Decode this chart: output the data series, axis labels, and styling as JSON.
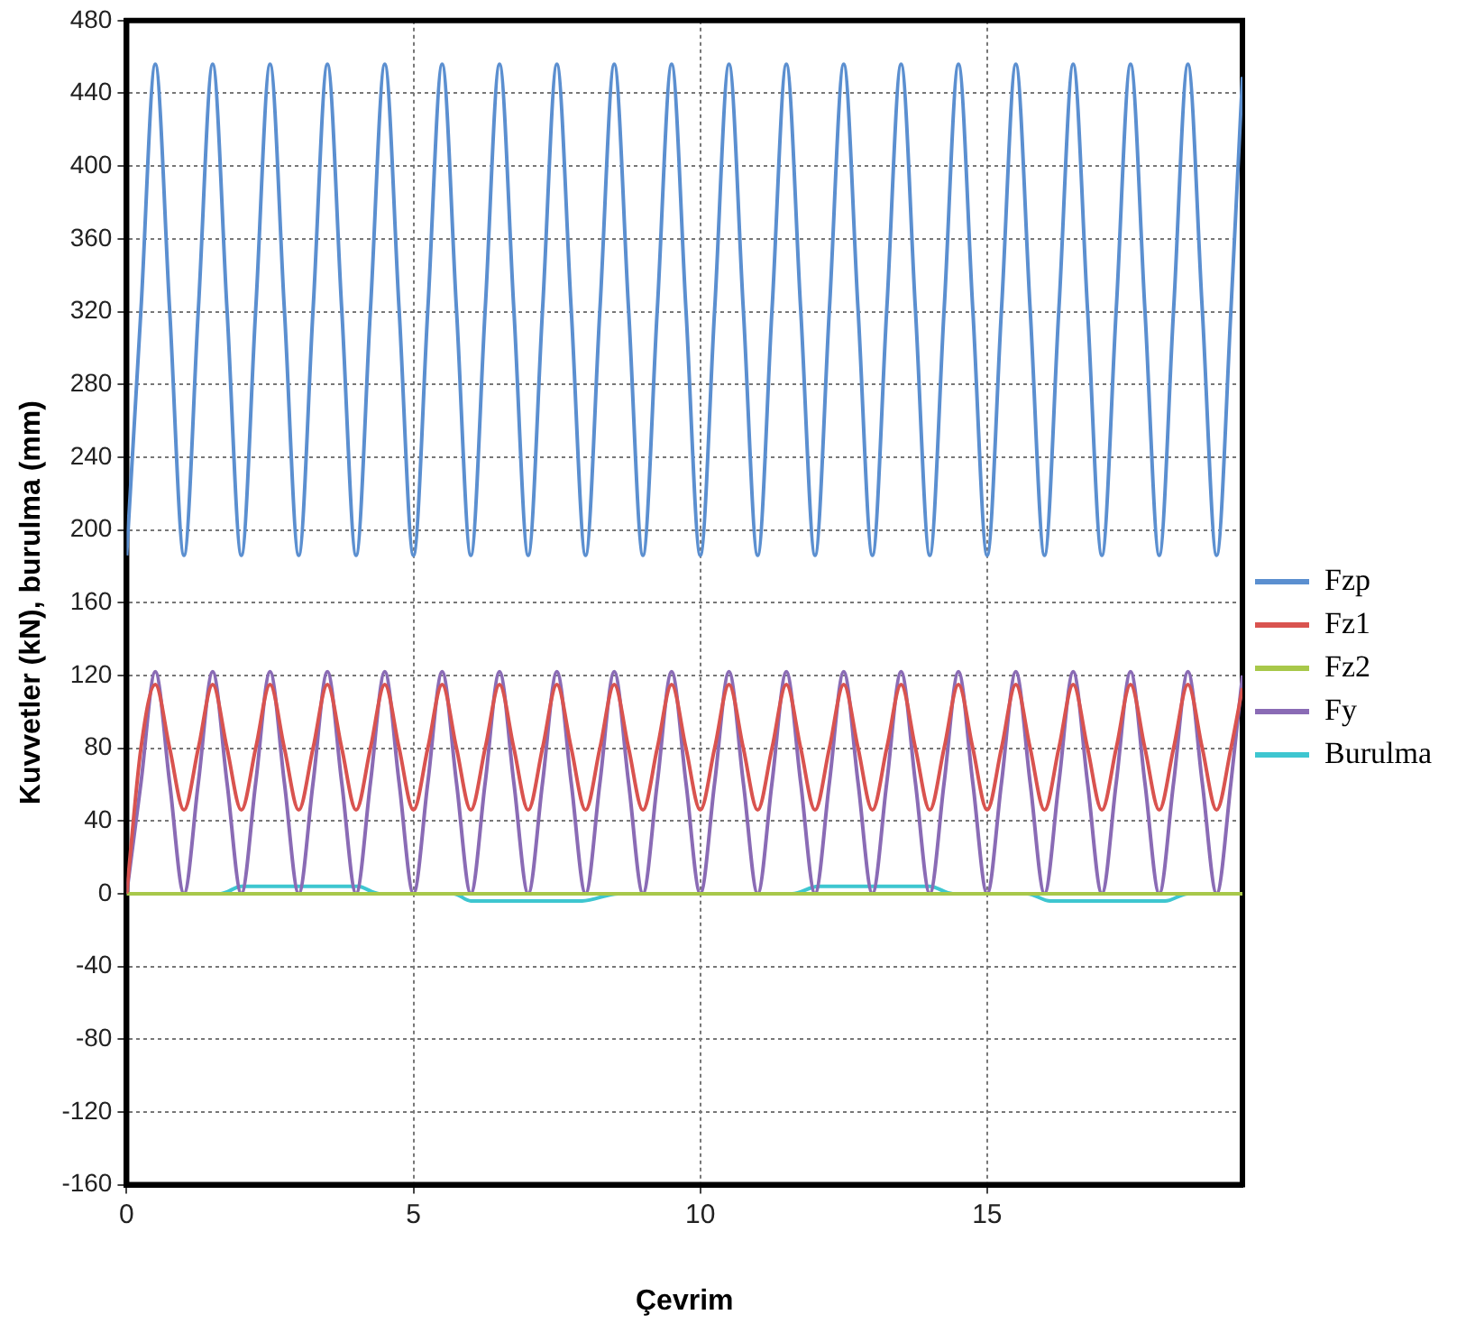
{
  "chart_data": {
    "type": "line",
    "xlabel": "Çevrim",
    "ylabel": "Kuvvetler (kN), burulma (mm)",
    "x": [
      0,
      0.25,
      0.5,
      0.75,
      1,
      1.25,
      1.5,
      1.75,
      2,
      2.25,
      2.5,
      2.75,
      3,
      3.25,
      3.5,
      3.75,
      4,
      4.25,
      4.5,
      4.75,
      5,
      5.25,
      5.5,
      5.75,
      6,
      6.25,
      6.5,
      6.75,
      7,
      7.25,
      7.5,
      7.75,
      8,
      8.25,
      8.5,
      8.75,
      9,
      9.25,
      9.5,
      9.75,
      10,
      10.25,
      10.5,
      10.75,
      11,
      11.25,
      11.5,
      11.75,
      12,
      12.25,
      12.5,
      12.75,
      13,
      13.25,
      13.5,
      13.75,
      14,
      14.25,
      14.5,
      14.75,
      15,
      15.25,
      15.5,
      15.75,
      16,
      16.25,
      16.5,
      16.75,
      17,
      17.25,
      17.5,
      17.75,
      18,
      18.25,
      18.5,
      18.75,
      19,
      19.25,
      19.45
    ],
    "series": [
      {
        "name": "Fzp",
        "color": "#5b8fd0",
        "values": [
          186,
          321,
          456,
          321,
          186,
          321,
          456,
          321,
          186,
          321,
          456,
          321,
          186,
          321,
          456,
          321,
          186,
          321,
          456,
          321,
          186,
          321,
          456,
          321,
          186,
          321,
          456,
          321,
          186,
          321,
          456,
          321,
          186,
          321,
          456,
          321,
          186,
          321,
          456,
          321,
          186,
          321,
          456,
          321,
          186,
          321,
          456,
          321,
          186,
          321,
          456,
          321,
          186,
          321,
          456,
          321,
          186,
          321,
          456,
          321,
          186,
          321,
          456,
          321,
          186,
          321,
          456,
          321,
          186,
          321,
          456,
          321,
          186,
          321,
          456,
          321,
          186,
          321,
          449
        ]
      },
      {
        "name": "Fz1",
        "color": "#d9534f",
        "values": [
          0,
          80,
          115,
          80,
          46,
          80,
          115,
          80,
          46,
          80,
          115,
          80,
          46,
          80,
          115,
          80,
          46,
          80,
          115,
          80,
          46,
          80,
          115,
          80,
          46,
          80,
          115,
          80,
          46,
          80,
          115,
          80,
          46,
          80,
          115,
          80,
          46,
          80,
          115,
          80,
          46,
          80,
          115,
          80,
          46,
          80,
          115,
          80,
          46,
          80,
          115,
          80,
          46,
          80,
          115,
          80,
          46,
          80,
          115,
          80,
          46,
          80,
          115,
          80,
          46,
          80,
          115,
          80,
          46,
          80,
          115,
          80,
          46,
          80,
          115,
          80,
          46,
          80,
          113
        ]
      },
      {
        "name": "Fz2",
        "color": "#a8c84a",
        "x": [
          0,
          19.45
        ],
        "values": [
          0,
          0
        ]
      },
      {
        "name": "Fy",
        "color": "#8a6bb5",
        "values": [
          0,
          61,
          122,
          61,
          0,
          61,
          122,
          61,
          0,
          61,
          122,
          61,
          0,
          61,
          122,
          61,
          0,
          61,
          122,
          61,
          0,
          61,
          122,
          61,
          0,
          61,
          122,
          61,
          0,
          61,
          122,
          61,
          0,
          61,
          122,
          61,
          0,
          61,
          122,
          61,
          0,
          61,
          122,
          61,
          0,
          61,
          122,
          61,
          0,
          61,
          122,
          61,
          0,
          61,
          122,
          61,
          0,
          61,
          122,
          61,
          0,
          61,
          122,
          61,
          0,
          61,
          122,
          61,
          0,
          61,
          122,
          61,
          0,
          61,
          122,
          61,
          0,
          61,
          120
        ]
      },
      {
        "name": "Burulma",
        "color": "#3ec6d0",
        "x": [
          0,
          1.64,
          2.0,
          4.03,
          4.4,
          5.7,
          6.0,
          7.94,
          8.57,
          11.6,
          12.06,
          14.0,
          14.4,
          15.7,
          16.1,
          18.1,
          18.5,
          19.45
        ],
        "values": [
          0,
          0,
          4,
          4,
          0,
          0,
          -4,
          -4,
          0,
          0,
          4,
          4,
          0,
          0,
          -4,
          -4,
          0,
          0
        ]
      }
    ],
    "xlim": [
      0,
      19.45
    ],
    "xticks": [
      0,
      5,
      10,
      15
    ],
    "ylim": [
      -160,
      480
    ],
    "yticks": [
      -160,
      -120,
      -80,
      -40,
      0,
      40,
      80,
      120,
      160,
      200,
      240,
      280,
      320,
      360,
      400,
      440,
      480
    ],
    "grid": true,
    "legend": "right",
    "marker": "none",
    "line_style": "solid"
  }
}
